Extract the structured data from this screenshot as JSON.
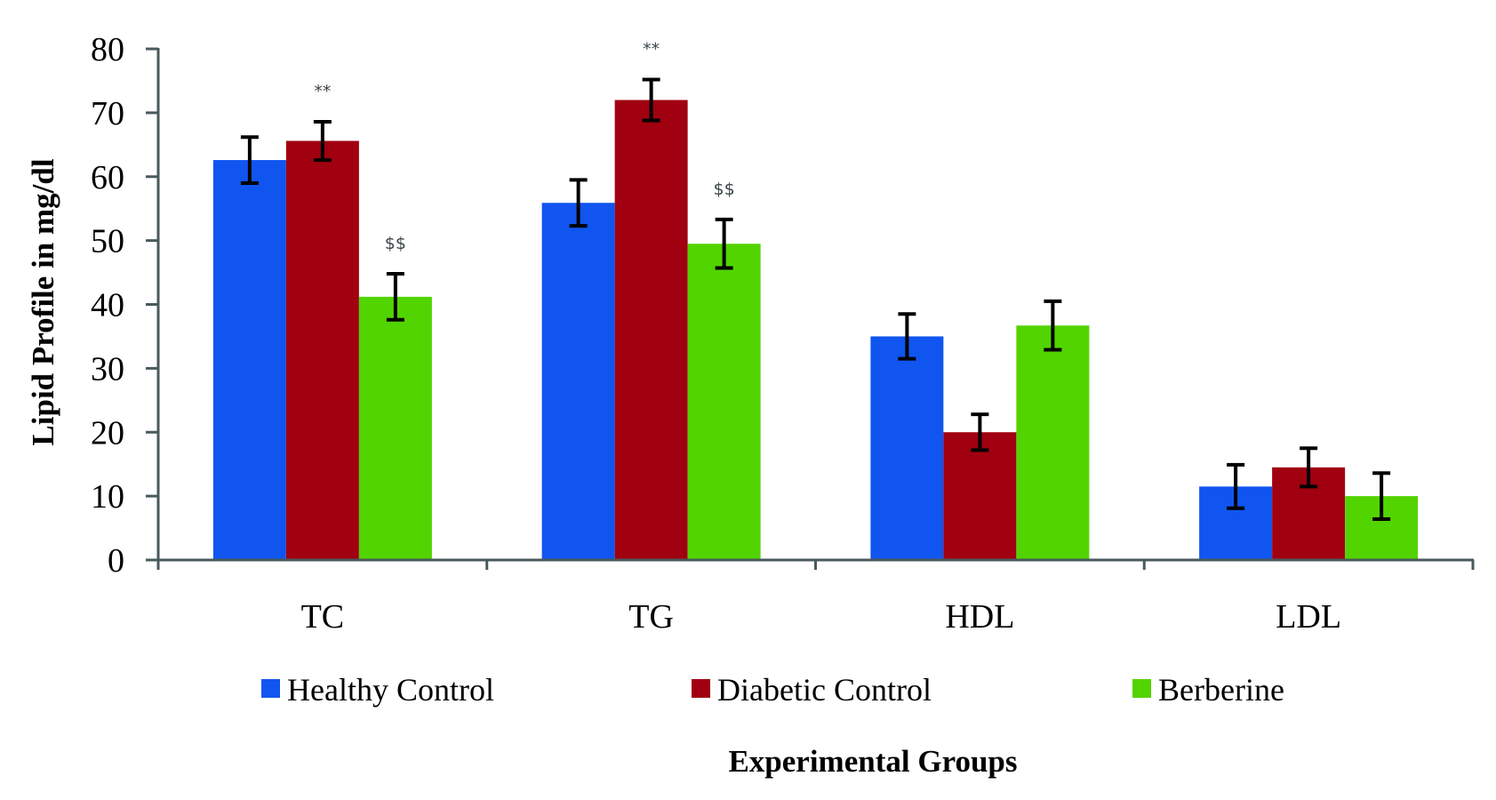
{
  "chart_data": {
    "type": "bar",
    "title": "",
    "xlabel": "Experimental Groups",
    "ylabel": "Lipid Profile in mg/dl",
    "ylim": [
      0,
      80
    ],
    "yticks": [
      0,
      10,
      20,
      30,
      40,
      50,
      60,
      70,
      80
    ],
    "ytick_labels": [
      "0",
      "10",
      "20",
      "30",
      "40",
      "50",
      "60",
      "70",
      "80"
    ],
    "grid": false,
    "legend_position": "bottom",
    "categories": [
      "TC",
      "TG",
      "HDL",
      "LDL"
    ],
    "series": [
      {
        "name": "Healthy Control",
        "color": "#1055f0",
        "values": [
          62.6,
          55.9,
          35.0,
          11.5
        ],
        "errors": [
          3.6,
          3.6,
          3.5,
          3.4
        ]
      },
      {
        "name": "Diabetic Control",
        "color": "#a00010",
        "values": [
          65.6,
          72.0,
          20.0,
          14.5
        ],
        "errors": [
          3.0,
          3.2,
          2.8,
          3.0
        ]
      },
      {
        "name": "Berberine",
        "color": "#52d400",
        "values": [
          41.2,
          49.5,
          36.7,
          10.0
        ],
        "errors": [
          3.6,
          3.8,
          3.8,
          3.6
        ]
      }
    ],
    "annotations": [
      {
        "text": "**",
        "category": "TC",
        "series": "Diabetic Control"
      },
      {
        "text": "$$",
        "category": "TC",
        "series": "Berberine"
      },
      {
        "text": "**",
        "category": "TG",
        "series": "Diabetic Control"
      },
      {
        "text": "$$",
        "category": "TG",
        "series": "Berberine"
      }
    ]
  }
}
